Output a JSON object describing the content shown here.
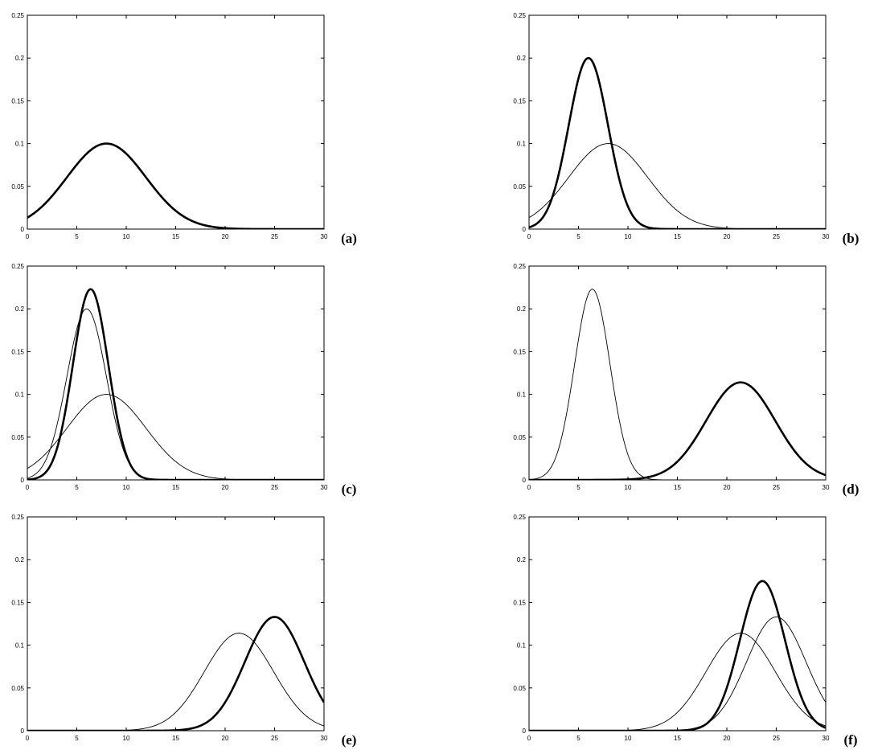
{
  "chart_data": [
    {
      "type": "line",
      "panel_label": "(a)",
      "xlim": [
        0,
        30
      ],
      "ylim": [
        0,
        0.25
      ],
      "xticks": [
        "0",
        "5",
        "10",
        "15",
        "20",
        "25",
        "30"
      ],
      "yticks": [
        "0",
        "0.05",
        "0.1",
        "0.15",
        "0.2",
        "0.25"
      ],
      "series": [
        {
          "style": "thick",
          "mean": 8.0,
          "sd": 3.99,
          "peak": 0.1
        }
      ]
    },
    {
      "type": "line",
      "panel_label": "(b)",
      "xlim": [
        0,
        30
      ],
      "ylim": [
        0,
        0.25
      ],
      "xticks": [
        "0",
        "5",
        "10",
        "15",
        "20",
        "25",
        "30"
      ],
      "yticks": [
        "0",
        "0.05",
        "0.1",
        "0.15",
        "0.2",
        "0.25"
      ],
      "series": [
        {
          "style": "thin",
          "mean": 8.0,
          "sd": 3.99,
          "peak": 0.1
        },
        {
          "style": "thick",
          "mean": 6.0,
          "sd": 1.99,
          "peak": 0.2
        }
      ]
    },
    {
      "type": "line",
      "panel_label": "(c)",
      "xlim": [
        0,
        30
      ],
      "ylim": [
        0,
        0.25
      ],
      "xticks": [
        "0",
        "5",
        "10",
        "15",
        "20",
        "25",
        "30"
      ],
      "yticks": [
        "0",
        "0.05",
        "0.1",
        "0.15",
        "0.2",
        "0.25"
      ],
      "series": [
        {
          "style": "thin",
          "mean": 8.0,
          "sd": 3.99,
          "peak": 0.1
        },
        {
          "style": "thin",
          "mean": 6.0,
          "sd": 1.99,
          "peak": 0.2
        },
        {
          "style": "thick",
          "mean": 6.4,
          "sd": 1.79,
          "peak": 0.223
        }
      ]
    },
    {
      "type": "line",
      "panel_label": "(d)",
      "xlim": [
        0,
        30
      ],
      "ylim": [
        0,
        0.25
      ],
      "xticks": [
        "0",
        "5",
        "10",
        "15",
        "20",
        "25",
        "30"
      ],
      "yticks": [
        "0",
        "0.05",
        "0.1",
        "0.15",
        "0.2",
        "0.25"
      ],
      "series": [
        {
          "style": "thin",
          "mean": 6.4,
          "sd": 1.79,
          "peak": 0.223
        },
        {
          "style": "thick",
          "mean": 21.4,
          "sd": 3.5,
          "peak": 0.114
        }
      ]
    },
    {
      "type": "line",
      "panel_label": "(e)",
      "xlim": [
        0,
        30
      ],
      "ylim": [
        0,
        0.25
      ],
      "xticks": [
        "0",
        "5",
        "10",
        "15",
        "20",
        "25",
        "30"
      ],
      "yticks": [
        "0",
        "0.05",
        "0.1",
        "0.15",
        "0.2",
        "0.25"
      ],
      "series": [
        {
          "style": "thin",
          "mean": 21.4,
          "sd": 3.5,
          "peak": 0.114
        },
        {
          "style": "thick",
          "mean": 25.0,
          "sd": 3.0,
          "peak": 0.133
        }
      ]
    },
    {
      "type": "line",
      "panel_label": "(f)",
      "xlim": [
        0,
        30
      ],
      "ylim": [
        0,
        0.25
      ],
      "xticks": [
        "0",
        "5",
        "10",
        "15",
        "20",
        "25",
        "30"
      ],
      "yticks": [
        "0",
        "0.05",
        "0.1",
        "0.15",
        "0.2",
        "0.25"
      ],
      "series": [
        {
          "style": "thin",
          "mean": 21.4,
          "sd": 3.5,
          "peak": 0.114
        },
        {
          "style": "thin",
          "mean": 25.0,
          "sd": 3.0,
          "peak": 0.133
        },
        {
          "style": "thick",
          "mean": 23.6,
          "sd": 2.28,
          "peak": 0.175
        }
      ]
    }
  ],
  "colors": {
    "line": "#000000",
    "background": "#ffffff"
  }
}
